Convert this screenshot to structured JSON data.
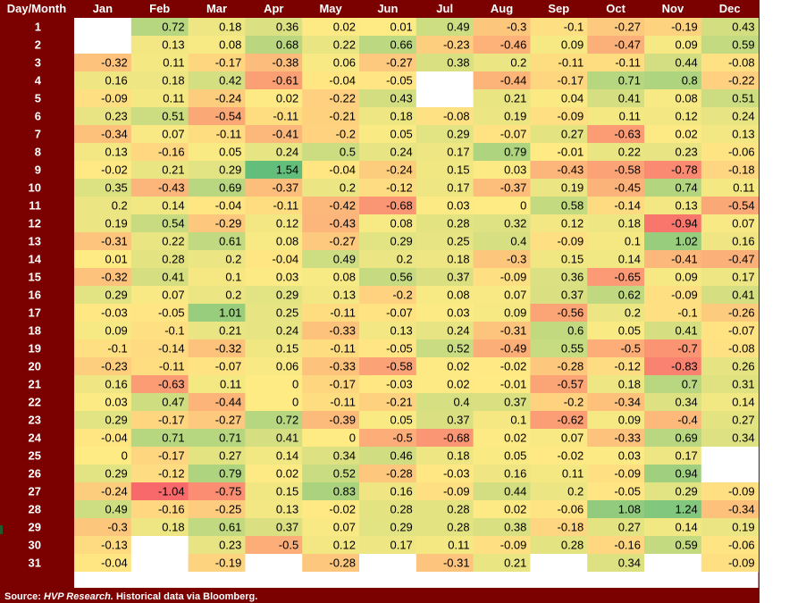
{
  "chart_data": {
    "type": "heatmap",
    "corner_label": "Day/Month",
    "columns": [
      "Jan",
      "Feb",
      "Mar",
      "Apr",
      "May",
      "Jun",
      "Jul",
      "Aug",
      "Sep",
      "Oct",
      "Nov",
      "Dec"
    ],
    "rows": [
      "1",
      "2",
      "3",
      "4",
      "5",
      "6",
      "7",
      "8",
      "9",
      "10",
      "11",
      "12",
      "13",
      "14",
      "15",
      "16",
      "17",
      "18",
      "19",
      "20",
      "21",
      "22",
      "23",
      "24",
      "25",
      "26",
      "27",
      "28",
      "29",
      "30",
      "31"
    ],
    "values": [
      [
        null,
        0.72,
        0.18,
        0.36,
        0.02,
        0.01,
        0.49,
        -0.3,
        -0.1,
        -0.27,
        -0.19,
        0.43
      ],
      [
        null,
        0.13,
        0.08,
        0.68,
        0.22,
        0.66,
        -0.23,
        -0.46,
        0.09,
        -0.47,
        0.09,
        0.59
      ],
      [
        -0.32,
        0.11,
        -0.17,
        -0.38,
        0.06,
        -0.27,
        0.38,
        0.2,
        -0.11,
        -0.11,
        0.44,
        -0.08
      ],
      [
        0.16,
        0.18,
        0.42,
        -0.61,
        -0.04,
        -0.05,
        null,
        -0.44,
        -0.17,
        0.71,
        0.8,
        -0.22
      ],
      [
        -0.09,
        0.11,
        -0.24,
        0.02,
        -0.22,
        0.43,
        null,
        0.21,
        0.04,
        0.41,
        0.08,
        0.51
      ],
      [
        0.23,
        0.51,
        -0.54,
        -0.11,
        -0.21,
        0.18,
        -0.08,
        0.19,
        -0.09,
        0.11,
        0.12,
        0.24
      ],
      [
        -0.34,
        0.07,
        -0.11,
        -0.41,
        -0.2,
        0.05,
        0.29,
        -0.07,
        0.27,
        -0.63,
        0.02,
        0.13
      ],
      [
        0.13,
        -0.16,
        0.05,
        0.24,
        0.5,
        0.24,
        0.17,
        0.79,
        -0.01,
        0.22,
        0.23,
        -0.06
      ],
      [
        -0.02,
        0.21,
        0.29,
        1.54,
        -0.04,
        -0.24,
        0.15,
        0.03,
        -0.43,
        -0.58,
        -0.78,
        -0.18
      ],
      [
        0.35,
        -0.43,
        0.69,
        -0.37,
        0.2,
        -0.12,
        0.17,
        -0.37,
        0.19,
        -0.45,
        0.74,
        0.11
      ],
      [
        0.2,
        0.14,
        -0.04,
        -0.11,
        -0.42,
        -0.68,
        0.03,
        0,
        0.58,
        -0.14,
        0.13,
        -0.54
      ],
      [
        0.19,
        0.54,
        -0.29,
        0.12,
        -0.43,
        0.08,
        0.28,
        0.32,
        0.12,
        0.18,
        -0.94,
        0.07
      ],
      [
        -0.31,
        0.22,
        0.61,
        0.08,
        -0.27,
        0.29,
        0.25,
        0.4,
        -0.09,
        0.1,
        1.02,
        0.16
      ],
      [
        0.01,
        0.28,
        0.2,
        -0.04,
        0.49,
        0.2,
        0.18,
        -0.3,
        0.15,
        0.14,
        -0.41,
        -0.47
      ],
      [
        -0.32,
        0.41,
        0.1,
        0.03,
        0.08,
        0.56,
        0.37,
        -0.09,
        0.36,
        -0.65,
        0.09,
        0.17
      ],
      [
        0.29,
        0.07,
        0.2,
        0.29,
        0.13,
        -0.2,
        0.08,
        0.07,
        0.37,
        0.62,
        -0.09,
        0.41
      ],
      [
        -0.03,
        -0.05,
        1.01,
        0.25,
        -0.11,
        -0.07,
        0.03,
        0.09,
        -0.56,
        0.2,
        -0.1,
        -0.26
      ],
      [
        0.09,
        -0.1,
        0.21,
        0.24,
        -0.33,
        0.13,
        0.24,
        -0.31,
        0.6,
        0.05,
        0.41,
        -0.07
      ],
      [
        -0.1,
        -0.14,
        -0.32,
        0.15,
        -0.11,
        -0.05,
        0.52,
        -0.49,
        0.55,
        -0.5,
        -0.7,
        -0.08
      ],
      [
        -0.23,
        -0.11,
        -0.07,
        0.06,
        -0.33,
        -0.58,
        0.02,
        -0.02,
        -0.28,
        -0.12,
        -0.83,
        0.26
      ],
      [
        0.16,
        -0.63,
        0.11,
        0,
        -0.17,
        -0.03,
        0.02,
        -0.01,
        -0.57,
        0.18,
        0.7,
        0.31
      ],
      [
        0.03,
        0.47,
        -0.44,
        0,
        -0.11,
        -0.21,
        0.4,
        0.37,
        -0.2,
        -0.34,
        0.34,
        0.14
      ],
      [
        0.29,
        -0.17,
        -0.27,
        0.72,
        -0.39,
        0.05,
        0.37,
        0.1,
        -0.62,
        0.09,
        -0.4,
        0.27
      ],
      [
        -0.04,
        0.71,
        0.71,
        0.41,
        0,
        -0.5,
        -0.68,
        0.02,
        0.07,
        -0.33,
        0.69,
        0.34
      ],
      [
        0,
        -0.17,
        0.27,
        0.14,
        0.34,
        0.46,
        0.18,
        0.05,
        -0.02,
        0.03,
        0.17,
        null
      ],
      [
        0.29,
        -0.12,
        0.79,
        0.02,
        0.52,
        -0.28,
        -0.03,
        0.16,
        0.11,
        -0.09,
        0.94,
        null
      ],
      [
        -0.24,
        -1.04,
        -0.75,
        0.15,
        0.83,
        0.16,
        -0.09,
        0.44,
        0.2,
        -0.05,
        0.29,
        -0.09
      ],
      [
        0.49,
        -0.16,
        -0.25,
        0.13,
        -0.02,
        0.28,
        0.28,
        0.02,
        -0.06,
        1.08,
        1.24,
        -0.34
      ],
      [
        -0.3,
        0.18,
        0.61,
        0.37,
        0.07,
        0.29,
        0.28,
        0.38,
        -0.18,
        0.27,
        0.14,
        0.19
      ],
      [
        -0.13,
        null,
        0.23,
        -0.5,
        0.12,
        0.17,
        0.11,
        -0.09,
        0.28,
        -0.16,
        0.59,
        -0.06
      ],
      [
        -0.04,
        null,
        -0.19,
        null,
        -0.28,
        null,
        -0.31,
        0.21,
        null,
        0.34,
        null,
        -0.09
      ]
    ],
    "color_scale": {
      "negative": "#f8696b",
      "mid": "#ffeb84",
      "positive": "#63be7b"
    },
    "colors": {
      "background": "#7b0000",
      "header_text": "#ffffff",
      "cell_text": "#000000",
      "empty_cell": "#ffffff"
    }
  },
  "footer": {
    "source_label": "Source:",
    "source_name": "HVP Research.",
    "source_note": "Historical data via Bloomberg."
  }
}
